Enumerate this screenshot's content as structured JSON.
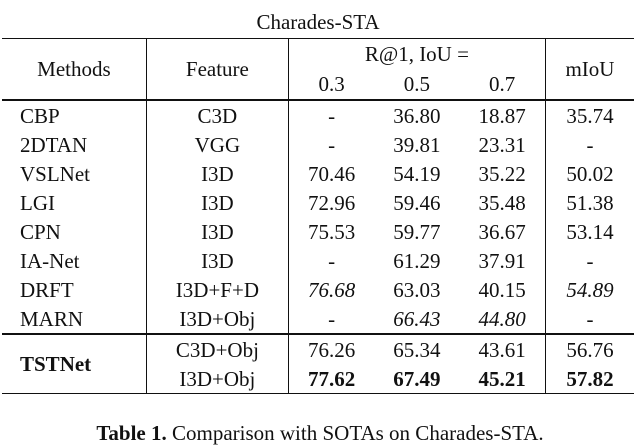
{
  "table": {
    "dataset": "Charades-STA",
    "headers": {
      "methods": "Methods",
      "feature": "Feature",
      "recall": "R@1, IoU =",
      "iou": [
        "0.3",
        "0.5",
        "0.7"
      ],
      "miou": "mIoU"
    },
    "rows": [
      {
        "method": "CBP",
        "feature": "C3D",
        "v03": "-",
        "v05": "36.80",
        "v07": "18.87",
        "miou": "35.74"
      },
      {
        "method": "2DTAN",
        "feature": "VGG",
        "v03": "-",
        "v05": "39.81",
        "v07": "23.31",
        "miou": "-"
      },
      {
        "method": "VSLNet",
        "feature": "I3D",
        "v03": "70.46",
        "v05": "54.19",
        "v07": "35.22",
        "miou": "50.02"
      },
      {
        "method": "LGI",
        "feature": "I3D",
        "v03": "72.96",
        "v05": "59.46",
        "v07": "35.48",
        "miou": "51.38"
      },
      {
        "method": "CPN",
        "feature": "I3D",
        "v03": "75.53",
        "v05": "59.77",
        "v07": "36.67",
        "miou": "53.14"
      },
      {
        "method": "IA-Net",
        "feature": "I3D",
        "v03": "-",
        "v05": "61.29",
        "v07": "37.91",
        "miou": "-"
      },
      {
        "method": "DRFT",
        "feature": "I3D+F+D",
        "v03": "76.68",
        "v05": "63.03",
        "v07": "40.15",
        "miou": "54.89"
      },
      {
        "method": "MARN",
        "feature": "I3D+Obj",
        "v03": "-",
        "v05": "66.43",
        "v07": "44.80",
        "miou": "-"
      }
    ],
    "ours": {
      "method": "TSTNet",
      "rows": [
        {
          "feature": "C3D+Obj",
          "v03": "76.26",
          "v05": "65.34",
          "v07": "43.61",
          "miou": "56.76"
        },
        {
          "feature": "I3D+Obj",
          "v03": "77.62",
          "v05": "67.49",
          "v07": "45.21",
          "miou": "57.82"
        }
      ]
    }
  },
  "caption": {
    "label": "Table 1.",
    "text": "Comparison with SOTAs on Charades-STA."
  }
}
